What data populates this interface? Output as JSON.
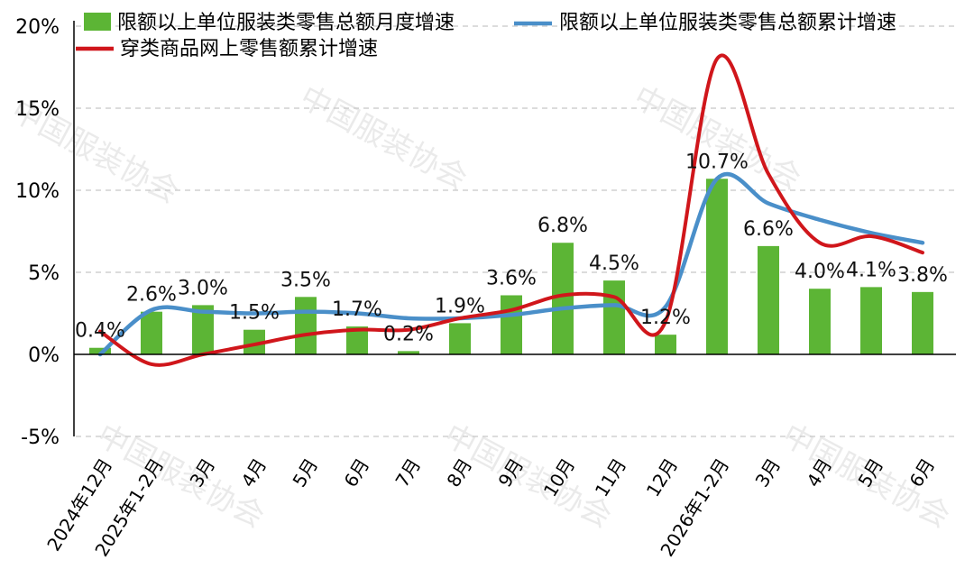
{
  "chart_data": {
    "type": "bar",
    "categories": [
      "2024年12月",
      "2025年1-2月",
      "3月",
      "4月",
      "5月",
      "6月",
      "7月",
      "8月",
      "9月",
      "10月",
      "11月",
      "12月",
      "2026年1-2月",
      "3月",
      "4月",
      "5月",
      "6月"
    ],
    "series": [
      {
        "name": "限额以上单位服装类零售总额月度增速",
        "type": "bar",
        "color": "#5cb535",
        "values": [
          0.4,
          2.6,
          3.0,
          1.5,
          3.5,
          1.7,
          0.2,
          1.9,
          3.6,
          6.8,
          4.5,
          1.2,
          10.7,
          6.6,
          4.0,
          4.1,
          3.8
        ],
        "labels": [
          "0.4%",
          "2.6%",
          "3.0%",
          "1.5%",
          "3.5%",
          "1.7%",
          "0.2%",
          "1.9%",
          "3.6%",
          "6.8%",
          "4.5%",
          "1.2%",
          "10.7%",
          "6.6%",
          "4.0%",
          "4.1%",
          "3.8%"
        ]
      },
      {
        "name": "限额以上单位服装类零售总额累计增速",
        "type": "line",
        "color": "#4a8fc9",
        "values": [
          0.0,
          2.7,
          2.6,
          2.5,
          2.6,
          2.5,
          2.2,
          2.2,
          2.4,
          2.8,
          3.0,
          2.9,
          10.7,
          9.2,
          8.2,
          7.4,
          6.8
        ]
      },
      {
        "name": "穿类商品网上零售额累计增速",
        "type": "line",
        "color": "#d0161b",
        "values": [
          1.4,
          -0.6,
          0.0,
          0.6,
          1.2,
          1.5,
          1.5,
          2.2,
          2.7,
          3.6,
          3.5,
          2.0,
          18.0,
          11.0,
          6.8,
          7.2,
          6.2
        ]
      }
    ],
    "yticks": [
      "20%",
      "15%",
      "10%",
      "5%",
      "0%",
      "-5%"
    ],
    "ylim": [
      -5,
      20
    ],
    "grid": "dashed-horizontal",
    "legend": "top",
    "watermark": "中国服装协会"
  }
}
